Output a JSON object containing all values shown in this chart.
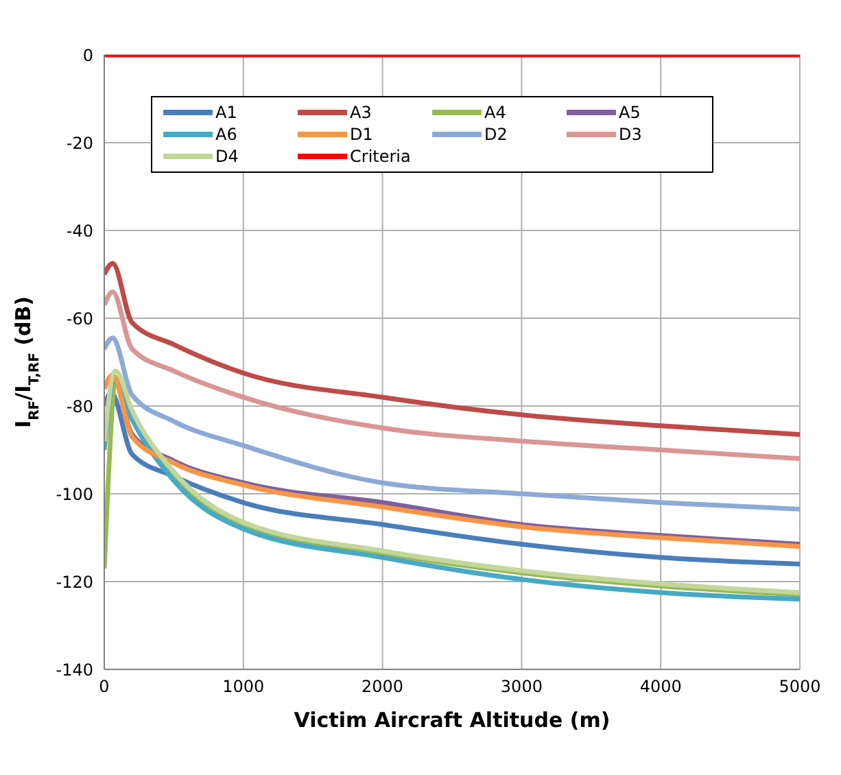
{
  "chart_data": {
    "type": "line",
    "xlabel": "Victim Aircraft Altitude (m)",
    "ylabel": "I$_{RF}$/I$_{T,RF}$ (dB)",
    "xlim": [
      0,
      5000
    ],
    "xticks": [
      0,
      1000,
      2000,
      3000,
      4000,
      5000
    ],
    "ylim": [
      -140,
      0
    ],
    "yticks": [
      -140,
      -120,
      -100,
      -80,
      -60,
      -40,
      -20,
      0
    ],
    "grid": true,
    "legend": "top",
    "marker": "none",
    "line_style": "solid",
    "series": [
      {
        "name": "A1",
        "color": "#4a7ebb",
        "x": [
          0,
          50,
          200,
          500,
          1000,
          2000,
          3000,
          4000,
          5000
        ],
        "values": [
          -80,
          -77,
          -91,
          -96,
          -102,
          -107,
          -111.5,
          -114.5,
          -116
        ]
      },
      {
        "name": "A3",
        "color": "#be4b48",
        "x": [
          0,
          60,
          200,
          500,
          1000,
          2000,
          3000,
          4000,
          5000
        ],
        "values": [
          -50,
          -47.5,
          -61,
          -66,
          -72.5,
          -78,
          -82,
          -84.5,
          -86.5
        ]
      },
      {
        "name": "A4",
        "color": "#98b954",
        "x": [
          0,
          90,
          200,
          500,
          1000,
          2000,
          3000,
          4000,
          5000
        ],
        "values": [
          -117,
          -74,
          -82,
          -96,
          -107,
          -113.5,
          -118,
          -121,
          -123
        ]
      },
      {
        "name": "A5",
        "color": "#7d60a0",
        "x": [
          0,
          60,
          200,
          500,
          1000,
          2000,
          3000,
          4000,
          5000
        ],
        "values": [
          -76,
          -73,
          -86.5,
          -92.5,
          -97.5,
          -102,
          -107,
          -109.5,
          -111.5
        ]
      },
      {
        "name": "A6",
        "color": "#46aac5",
        "x": [
          0,
          70,
          200,
          500,
          1000,
          2000,
          3000,
          4000,
          5000
        ],
        "values": [
          -90,
          -74,
          -83,
          -97,
          -108,
          -114.5,
          -119.5,
          -122.5,
          -124
        ]
      },
      {
        "name": "D1",
        "color": "#f79646",
        "x": [
          0,
          60,
          200,
          500,
          1000,
          2000,
          3000,
          4000,
          5000
        ],
        "values": [
          -76,
          -73,
          -87,
          -93,
          -98,
          -103,
          -107.5,
          -110,
          -112
        ]
      },
      {
        "name": "D2",
        "color": "#8caad6",
        "x": [
          0,
          60,
          200,
          500,
          1000,
          2000,
          3000,
          4000,
          5000
        ],
        "values": [
          -67,
          -64.5,
          -77.5,
          -83.5,
          -89,
          -97.5,
          -100,
          -102,
          -103.5
        ]
      },
      {
        "name": "D3",
        "color": "#d99694",
        "x": [
          0,
          60,
          200,
          500,
          1000,
          2000,
          3000,
          4000,
          5000
        ],
        "values": [
          -57,
          -54,
          -67,
          -72,
          -78,
          -85,
          -88,
          -90,
          -92
        ]
      },
      {
        "name": "D4",
        "color": "#c3d69b",
        "x": [
          0,
          80,
          200,
          500,
          1000,
          2000,
          3000,
          4000,
          5000
        ],
        "values": [
          -88,
          -72,
          -81,
          -95,
          -106.5,
          -113,
          -117.5,
          -120.5,
          -122.5
        ]
      },
      {
        "name": "Criteria",
        "color": "#ff0000",
        "x": [
          0,
          5000
        ],
        "values": [
          0,
          0
        ]
      }
    ]
  }
}
